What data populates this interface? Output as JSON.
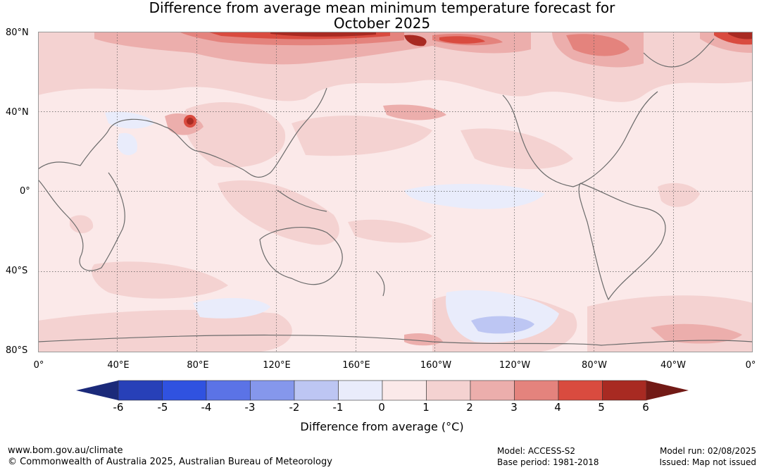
{
  "title_line1": "Difference from average mean minimum temperature forecast for",
  "title_line2": "October 2025",
  "lat_labels": [
    "80°N",
    "40°N",
    "0°",
    "40°S",
    "80°S"
  ],
  "lon_labels": [
    "0°",
    "40°E",
    "80°E",
    "120°E",
    "160°E",
    "160°W",
    "120°W",
    "80°W",
    "40°W",
    "0°"
  ],
  "colorbar": {
    "ticks": [
      "-6",
      "-5",
      "-4",
      "-3",
      "-2",
      "-1",
      "0",
      "1",
      "2",
      "3",
      "4",
      "5",
      "6"
    ],
    "colors": [
      "#1b2a7a",
      "#2740b8",
      "#3052e0",
      "#5b73e6",
      "#8597ec",
      "#bdc6f3",
      "#e9ecfb",
      "#fbe9e9",
      "#f4d2d1",
      "#ecaeac",
      "#e4837d",
      "#d94b3f",
      "#a82a22",
      "#721a16"
    ],
    "label": "Difference from average (°C)"
  },
  "footer": {
    "url": "www.bom.gov.au/climate",
    "copyright": "© Commonwealth of Australia 2025, Australian Bureau of Meteorology",
    "model": "Model: ACCESS-S2",
    "base_period": "Base period: 1981-2018",
    "model_run": "Model run: 02/08/2025",
    "issued": "Issued: Map not issued"
  }
}
